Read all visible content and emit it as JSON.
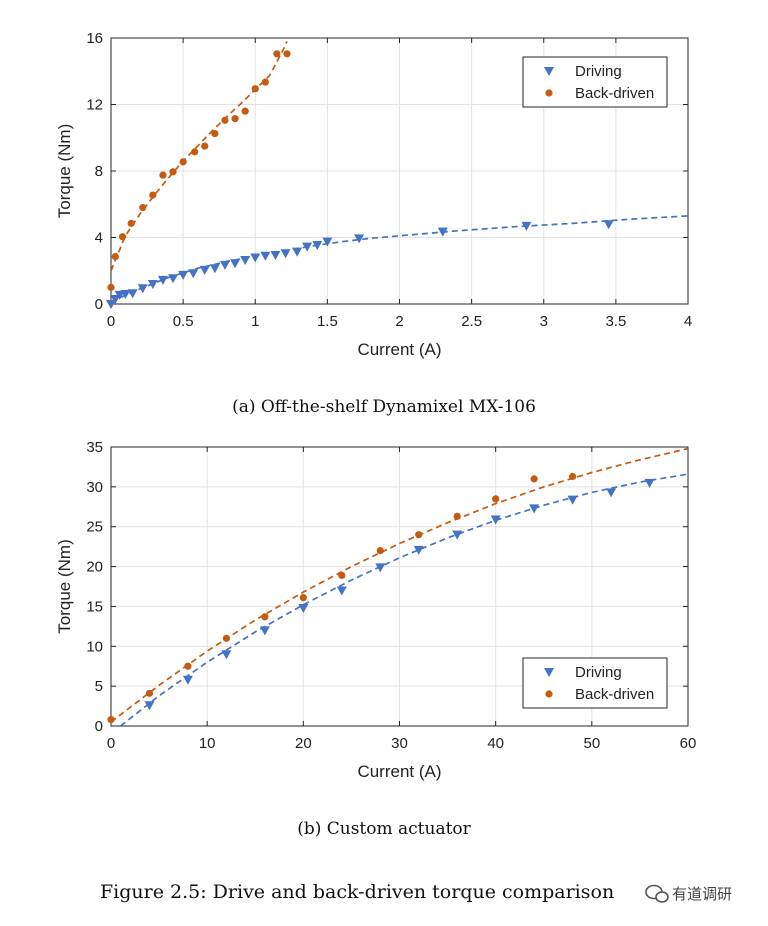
{
  "chart_data": [
    {
      "type": "scatter",
      "xlabel": "Current (A)",
      "ylabel": "Torque (Nm)",
      "xlim": [
        0,
        4
      ],
      "ylim": [
        0,
        16
      ],
      "xticks": [
        "0",
        "0.5",
        "1",
        "1.5",
        "2",
        "2.5",
        "3",
        "3.5",
        "4"
      ],
      "yticks": [
        "0",
        "4",
        "8",
        "12",
        "16"
      ],
      "grid": true,
      "legend_position": "top-right",
      "caption": "(a) Off-the-shelf Dynamixel MX-106",
      "series": [
        {
          "name": "Driving",
          "marker": "triangle-down",
          "color": "#4472c4",
          "points": [
            [
              0,
              0
            ],
            [
              0.03,
              0.3
            ],
            [
              0.06,
              0.55
            ],
            [
              0.1,
              0.6
            ],
            [
              0.15,
              0.65
            ],
            [
              0.22,
              0.95
            ],
            [
              0.29,
              1.2
            ],
            [
              0.36,
              1.45
            ],
            [
              0.43,
              1.55
            ],
            [
              0.5,
              1.75
            ],
            [
              0.57,
              1.85
            ],
            [
              0.65,
              2.05
            ],
            [
              0.72,
              2.15
            ],
            [
              0.79,
              2.35
            ],
            [
              0.86,
              2.45
            ],
            [
              0.93,
              2.65
            ],
            [
              1.0,
              2.8
            ],
            [
              1.07,
              2.9
            ],
            [
              1.14,
              2.95
            ],
            [
              1.21,
              3.05
            ],
            [
              1.29,
              3.15
            ],
            [
              1.36,
              3.45
            ],
            [
              1.43,
              3.55
            ],
            [
              1.5,
              3.75
            ],
            [
              1.72,
              3.95
            ],
            [
              2.3,
              4.35
            ],
            [
              2.88,
              4.7
            ],
            [
              3.45,
              4.8
            ]
          ]
        },
        {
          "name": "Back-driven",
          "marker": "circle",
          "color": "#c55a11",
          "points": [
            [
              0,
              1.0
            ],
            [
              0.03,
              2.85
            ],
            [
              0.08,
              4.05
            ],
            [
              0.14,
              4.85
            ],
            [
              0.22,
              5.8
            ],
            [
              0.29,
              6.55
            ],
            [
              0.36,
              7.75
            ],
            [
              0.43,
              7.95
            ],
            [
              0.5,
              8.55
            ],
            [
              0.58,
              9.15
            ],
            [
              0.65,
              9.5
            ],
            [
              0.72,
              10.25
            ],
            [
              0.79,
              11.05
            ],
            [
              0.86,
              11.15
            ],
            [
              0.93,
              11.6
            ],
            [
              1.0,
              12.95
            ],
            [
              1.07,
              13.35
            ],
            [
              1.15,
              15.05
            ],
            [
              1.22,
              15.05
            ]
          ]
        }
      ],
      "fits": [
        {
          "series": "Driving",
          "points": [
            [
              0,
              0.15
            ],
            [
              0.2,
              0.9
            ],
            [
              0.4,
              1.6
            ],
            [
              0.6,
              2.15
            ],
            [
              0.8,
              2.55
            ],
            [
              1.0,
              2.9
            ],
            [
              1.2,
              3.2
            ],
            [
              1.4,
              3.5
            ],
            [
              1.6,
              3.75
            ],
            [
              1.8,
              3.95
            ],
            [
              2.0,
              4.1
            ],
            [
              2.4,
              4.4
            ],
            [
              2.8,
              4.65
            ],
            [
              3.2,
              4.85
            ],
            [
              3.6,
              5.1
            ],
            [
              4.0,
              5.3
            ]
          ]
        },
        {
          "series": "Back-driven",
          "points": [
            [
              0,
              2.0
            ],
            [
              0.1,
              4.1
            ],
            [
              0.2,
              5.4
            ],
            [
              0.3,
              6.55
            ],
            [
              0.4,
              7.6
            ],
            [
              0.5,
              8.6
            ],
            [
              0.6,
              9.5
            ],
            [
              0.7,
              10.4
            ],
            [
              0.8,
              11.25
            ],
            [
              0.9,
              12.05
            ],
            [
              1.0,
              12.9
            ],
            [
              1.1,
              13.75
            ],
            [
              1.2,
              15.4
            ],
            [
              1.22,
              15.8
            ]
          ]
        }
      ]
    },
    {
      "type": "scatter",
      "xlabel": "Current (A)",
      "ylabel": "Torque (Nm)",
      "xlim": [
        0,
        60
      ],
      "ylim": [
        0,
        35
      ],
      "xticks": [
        "0",
        "10",
        "20",
        "30",
        "40",
        "50",
        "60"
      ],
      "yticks": [
        "0",
        "5",
        "10",
        "15",
        "20",
        "25",
        "30",
        "35"
      ],
      "grid": true,
      "legend_position": "bottom-right",
      "caption": "(b) Custom actuator",
      "series": [
        {
          "name": "Driving",
          "marker": "triangle-down",
          "color": "#4472c4",
          "points": [
            [
              4,
              2.6
            ],
            [
              8,
              5.8
            ],
            [
              12,
              9.0
            ],
            [
              16,
              12.0
            ],
            [
              20,
              14.8
            ],
            [
              24,
              17.0
            ],
            [
              28,
              19.9
            ],
            [
              32,
              22.1
            ],
            [
              36,
              24.0
            ],
            [
              40,
              25.9
            ],
            [
              44,
              27.3
            ],
            [
              48,
              28.4
            ],
            [
              52,
              29.3
            ],
            [
              56,
              30.5
            ]
          ]
        },
        {
          "name": "Back-driven",
          "marker": "circle",
          "color": "#c55a11",
          "points": [
            [
              0,
              0.8
            ],
            [
              4,
              4.1
            ],
            [
              8,
              7.5
            ],
            [
              12,
              11.0
            ],
            [
              16,
              13.7
            ],
            [
              20,
              16.1
            ],
            [
              24,
              18.9
            ],
            [
              28,
              22.0
            ],
            [
              32,
              24.0
            ],
            [
              36,
              26.3
            ],
            [
              40,
              28.5
            ],
            [
              44,
              31.0
            ],
            [
              48,
              31.3
            ]
          ]
        }
      ],
      "fits": [
        {
          "series": "Driving",
          "points": [
            [
              1,
              0
            ],
            [
              5,
              3.8
            ],
            [
              10,
              8.0
            ],
            [
              15,
              11.8
            ],
            [
              20,
              15.2
            ],
            [
              25,
              18.3
            ],
            [
              30,
              21.1
            ],
            [
              35,
              23.6
            ],
            [
              40,
              25.8
            ],
            [
              45,
              27.7
            ],
            [
              50,
              29.3
            ],
            [
              55,
              30.6
            ],
            [
              60,
              31.6
            ]
          ]
        },
        {
          "series": "Back-driven",
          "points": [
            [
              0,
              0.5
            ],
            [
              5,
              5.1
            ],
            [
              10,
              9.4
            ],
            [
              15,
              13.3
            ],
            [
              20,
              16.8
            ],
            [
              25,
              20.0
            ],
            [
              30,
              22.9
            ],
            [
              35,
              25.5
            ],
            [
              40,
              27.9
            ],
            [
              45,
              30.0
            ],
            [
              50,
              31.8
            ],
            [
              55,
              33.4
            ],
            [
              60,
              34.8
            ]
          ]
        }
      ]
    }
  ],
  "figure_caption": "Figure 2.5: Drive and back-driven torque comparison",
  "watermark": "有道调研"
}
